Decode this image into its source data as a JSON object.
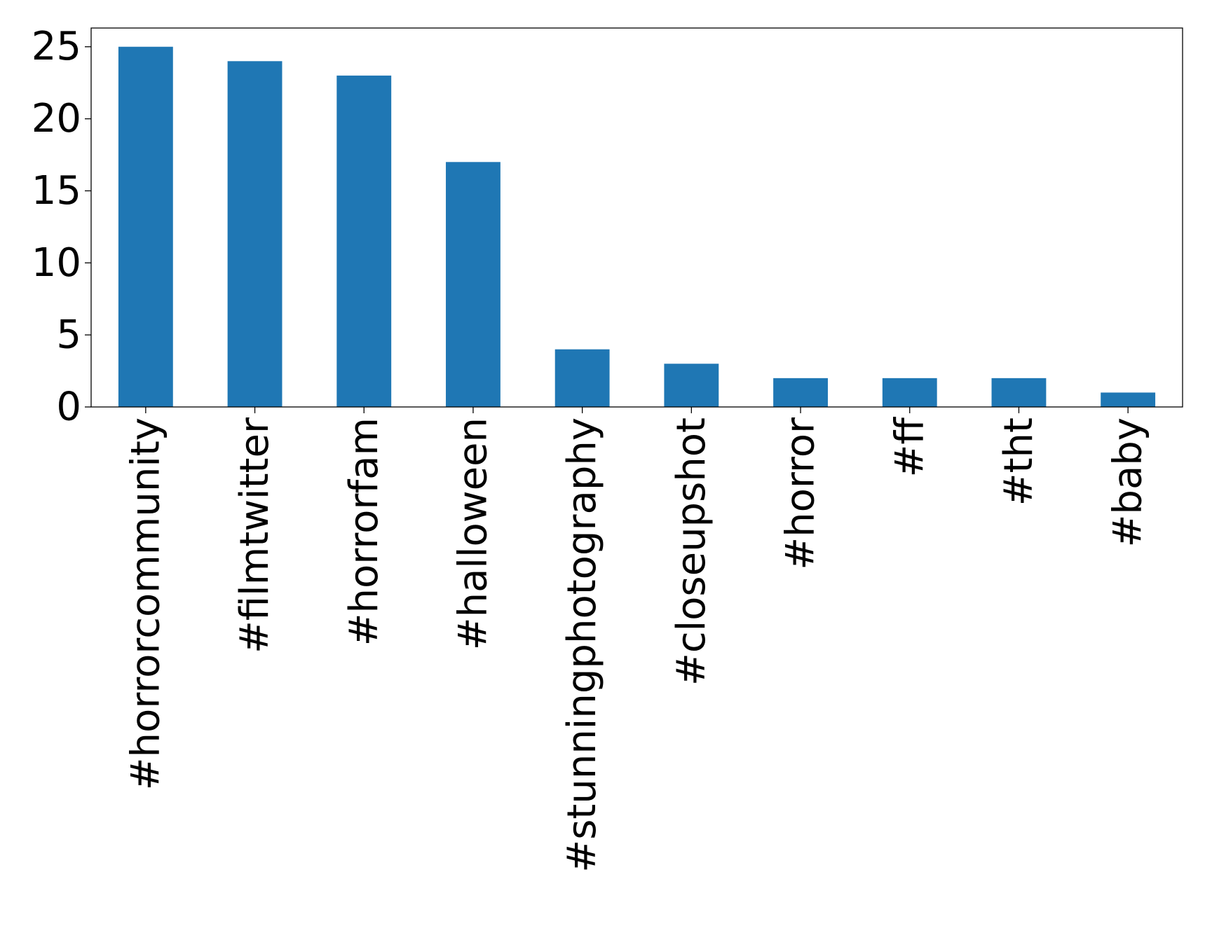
{
  "chart_data": {
    "type": "bar",
    "categories": [
      "#horrorcommunity",
      "#filmtwitter",
      "#horrorfam",
      "#halloween",
      "#stunningphotography",
      "#closeupshot",
      "#horror",
      "#ff",
      "#tht",
      "#baby"
    ],
    "values": [
      25,
      24,
      23,
      17,
      4,
      3,
      2,
      2,
      2,
      1
    ],
    "ylim": [
      0,
      26.3
    ],
    "yticks": [
      0,
      5,
      10,
      15,
      20,
      25
    ],
    "title": "",
    "xlabel": "",
    "ylabel": "",
    "grid": false,
    "legend": "none",
    "bar_color": "#1f77b4"
  }
}
